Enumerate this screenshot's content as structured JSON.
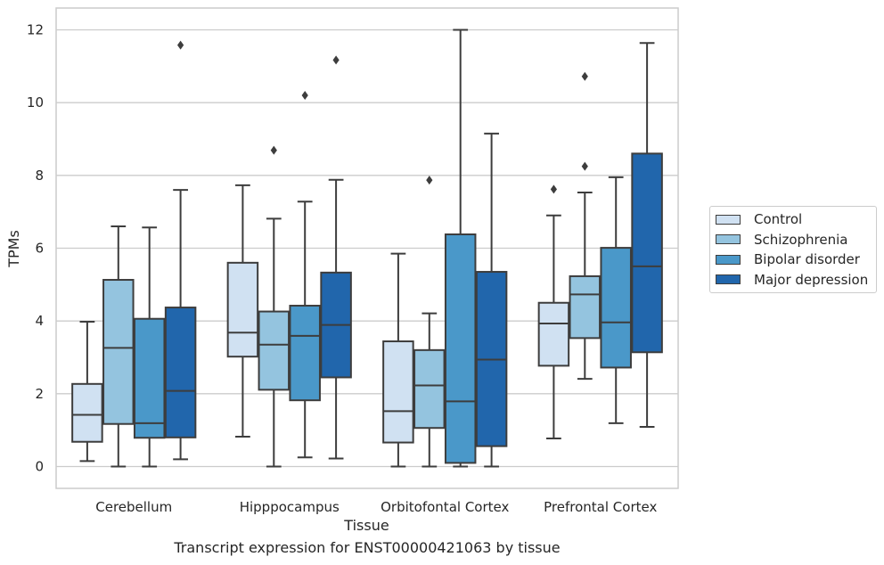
{
  "chart_data": {
    "type": "box",
    "xlabel": "Tissue",
    "ylabel": "TPMs",
    "caption": "Transcript expression for ENST00000421063 by tissue",
    "ylim": [
      -0.6,
      12.6
    ],
    "yticks": [
      0,
      2,
      4,
      6,
      8,
      10,
      12
    ],
    "grid": "horizontal",
    "legend_position": "right",
    "categories": [
      "Cerebellum",
      "Hipppocampus",
      "Orbitofontal Cortex",
      "Prefrontal Cortex"
    ],
    "series": [
      {
        "name": "Control",
        "color": "#d0e1f2",
        "boxes": [
          {
            "whisker_low": 0.15,
            "q1": 0.68,
            "median": 1.42,
            "q3": 2.27,
            "whisker_high": 3.98,
            "outliers": []
          },
          {
            "whisker_low": 0.82,
            "q1": 3.02,
            "median": 3.68,
            "q3": 5.6,
            "whisker_high": 7.73,
            "outliers": []
          },
          {
            "whisker_low": 0.0,
            "q1": 0.66,
            "median": 1.52,
            "q3": 3.44,
            "whisker_high": 5.85,
            "outliers": []
          },
          {
            "whisker_low": 0.77,
            "q1": 2.77,
            "median": 3.93,
            "q3": 4.5,
            "whisker_high": 6.9,
            "outliers": [
              7.62
            ]
          }
        ]
      },
      {
        "name": "Schizophrenia",
        "color": "#94c4df",
        "boxes": [
          {
            "whisker_low": 0.0,
            "q1": 1.17,
            "median": 3.26,
            "q3": 5.13,
            "whisker_high": 6.6,
            "outliers": []
          },
          {
            "whisker_low": 0.0,
            "q1": 2.11,
            "median": 3.35,
            "q3": 4.26,
            "whisker_high": 6.81,
            "outliers": [
              8.69
            ]
          },
          {
            "whisker_low": 0.0,
            "q1": 1.06,
            "median": 2.23,
            "q3": 3.2,
            "whisker_high": 4.21,
            "outliers": [
              7.87
            ]
          },
          {
            "whisker_low": 2.41,
            "q1": 3.53,
            "median": 4.73,
            "q3": 5.23,
            "whisker_high": 7.53,
            "outliers": [
              8.25,
              10.72
            ]
          }
        ]
      },
      {
        "name": "Bipolar disorder",
        "color": "#4a98c9",
        "boxes": [
          {
            "whisker_low": 0.0,
            "q1": 0.79,
            "median": 1.19,
            "q3": 4.06,
            "whisker_high": 6.57,
            "outliers": []
          },
          {
            "whisker_low": 0.25,
            "q1": 1.82,
            "median": 3.59,
            "q3": 4.42,
            "whisker_high": 7.28,
            "outliers": [
              10.2
            ]
          },
          {
            "whisker_low": 0.0,
            "q1": 0.1,
            "median": 1.79,
            "q3": 6.38,
            "whisker_high": 12.0,
            "outliers": []
          },
          {
            "whisker_low": 1.19,
            "q1": 2.72,
            "median": 3.96,
            "q3": 6.01,
            "whisker_high": 7.95,
            "outliers": []
          }
        ]
      },
      {
        "name": "Major depression",
        "color": "#2166ac",
        "boxes": [
          {
            "whisker_low": 0.2,
            "q1": 0.8,
            "median": 2.08,
            "q3": 4.37,
            "whisker_high": 7.6,
            "outliers": [
              11.58
            ]
          },
          {
            "whisker_low": 0.22,
            "q1": 2.45,
            "median": 3.89,
            "q3": 5.33,
            "whisker_high": 7.88,
            "outliers": [
              11.17
            ]
          },
          {
            "whisker_low": 0.0,
            "q1": 0.56,
            "median": 2.94,
            "q3": 5.35,
            "whisker_high": 9.15,
            "outliers": []
          },
          {
            "whisker_low": 1.09,
            "q1": 3.14,
            "median": 5.5,
            "q3": 8.6,
            "whisker_high": 11.64,
            "outliers": []
          }
        ]
      }
    ]
  },
  "legend": {
    "items": [
      {
        "label": "Control",
        "color": "#d0e1f2"
      },
      {
        "label": "Schizophrenia",
        "color": "#94c4df"
      },
      {
        "label": "Bipolar disorder",
        "color": "#4a98c9"
      },
      {
        "label": "Major depression",
        "color": "#2166ac"
      }
    ]
  }
}
